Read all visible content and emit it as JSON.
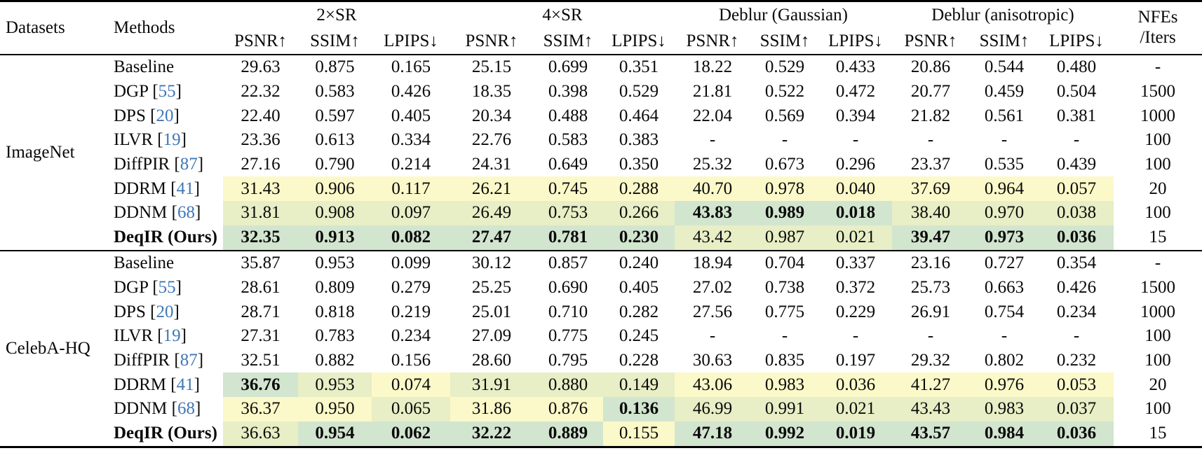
{
  "table": {
    "header": {
      "datasets": "Datasets",
      "methods": "Methods",
      "groups": [
        {
          "label": "2×SR"
        },
        {
          "label": "4×SR"
        },
        {
          "label": "Deblur (Gaussian)"
        },
        {
          "label": "Deblur (anisotropic)"
        }
      ],
      "metrics": [
        "PSNR↑",
        "SSIM↑",
        "LPIPS↓"
      ],
      "nfes_line1": "NFEs",
      "nfes_line2": "/Iters"
    },
    "highlight_colors": {
      "best": "#d2e5cf",
      "second": "#e8eec5",
      "third": "#fbf9c9"
    },
    "citation_color": "#4077b6",
    "sections": [
      {
        "dataset": "ImageNet",
        "rows": [
          {
            "method": "Baseline",
            "cite": null,
            "bold_method": false,
            "nfes": "-",
            "cells": [
              {
                "v": "29.63"
              },
              {
                "v": "0.875"
              },
              {
                "v": "0.165"
              },
              {
                "v": "25.15"
              },
              {
                "v": "0.699"
              },
              {
                "v": "0.351"
              },
              {
                "v": "18.22"
              },
              {
                "v": "0.529"
              },
              {
                "v": "0.433"
              },
              {
                "v": "20.86"
              },
              {
                "v": "0.544"
              },
              {
                "v": "0.480"
              }
            ]
          },
          {
            "method": "DGP",
            "cite": "55",
            "bold_method": false,
            "nfes": "1500",
            "cells": [
              {
                "v": "22.32"
              },
              {
                "v": "0.583"
              },
              {
                "v": "0.426"
              },
              {
                "v": "18.35"
              },
              {
                "v": "0.398"
              },
              {
                "v": "0.529"
              },
              {
                "v": "21.81"
              },
              {
                "v": "0.522"
              },
              {
                "v": "0.472"
              },
              {
                "v": "20.77"
              },
              {
                "v": "0.459"
              },
              {
                "v": "0.504"
              }
            ]
          },
          {
            "method": "DPS",
            "cite": "20",
            "bold_method": false,
            "nfes": "1000",
            "cells": [
              {
                "v": "22.40"
              },
              {
                "v": "0.597"
              },
              {
                "v": "0.405"
              },
              {
                "v": "20.34"
              },
              {
                "v": "0.488"
              },
              {
                "v": "0.464"
              },
              {
                "v": "22.04"
              },
              {
                "v": "0.569"
              },
              {
                "v": "0.394"
              },
              {
                "v": "21.82"
              },
              {
                "v": "0.561"
              },
              {
                "v": "0.381"
              }
            ]
          },
          {
            "method": "ILVR",
            "cite": "19",
            "bold_method": false,
            "nfes": "100",
            "cells": [
              {
                "v": "23.36"
              },
              {
                "v": "0.613"
              },
              {
                "v": "0.334"
              },
              {
                "v": "22.76"
              },
              {
                "v": "0.583"
              },
              {
                "v": "0.383"
              },
              {
                "v": "-"
              },
              {
                "v": "-"
              },
              {
                "v": "-"
              },
              {
                "v": "-"
              },
              {
                "v": "-"
              },
              {
                "v": "-"
              }
            ]
          },
          {
            "method": "DiffPIR",
            "cite": "87",
            "bold_method": false,
            "nfes": "100",
            "cells": [
              {
                "v": "27.16"
              },
              {
                "v": "0.790"
              },
              {
                "v": "0.214"
              },
              {
                "v": "24.31"
              },
              {
                "v": "0.649"
              },
              {
                "v": "0.350"
              },
              {
                "v": "25.32"
              },
              {
                "v": "0.673"
              },
              {
                "v": "0.296"
              },
              {
                "v": "23.37"
              },
              {
                "v": "0.535"
              },
              {
                "v": "0.439"
              }
            ]
          },
          {
            "method": "DDRM",
            "cite": "41",
            "bold_method": false,
            "nfes": "20",
            "cells": [
              {
                "v": "31.43",
                "h": "third"
              },
              {
                "v": "0.906",
                "h": "third"
              },
              {
                "v": "0.117",
                "h": "third"
              },
              {
                "v": "26.21",
                "h": "third"
              },
              {
                "v": "0.745",
                "h": "third"
              },
              {
                "v": "0.288",
                "h": "third"
              },
              {
                "v": "40.70",
                "h": "third"
              },
              {
                "v": "0.978",
                "h": "third"
              },
              {
                "v": "0.040",
                "h": "third"
              },
              {
                "v": "37.69",
                "h": "third"
              },
              {
                "v": "0.964",
                "h": "third"
              },
              {
                "v": "0.057",
                "h": "third"
              }
            ]
          },
          {
            "method": "DDNM",
            "cite": "68",
            "bold_method": false,
            "nfes": "100",
            "cells": [
              {
                "v": "31.81",
                "h": "second"
              },
              {
                "v": "0.908",
                "h": "second"
              },
              {
                "v": "0.097",
                "h": "second"
              },
              {
                "v": "26.49",
                "h": "second"
              },
              {
                "v": "0.753",
                "h": "second"
              },
              {
                "v": "0.266",
                "h": "second"
              },
              {
                "v": "43.83",
                "h": "best",
                "b": true
              },
              {
                "v": "0.989",
                "h": "best",
                "b": true
              },
              {
                "v": "0.018",
                "h": "best",
                "b": true
              },
              {
                "v": "38.40",
                "h": "second"
              },
              {
                "v": "0.970",
                "h": "second"
              },
              {
                "v": "0.038",
                "h": "second"
              }
            ]
          },
          {
            "method": "DeqIR (Ours)",
            "cite": null,
            "bold_method": true,
            "nfes": "15",
            "cells": [
              {
                "v": "32.35",
                "h": "best",
                "b": true
              },
              {
                "v": "0.913",
                "h": "best",
                "b": true
              },
              {
                "v": "0.082",
                "h": "best",
                "b": true
              },
              {
                "v": "27.47",
                "h": "best",
                "b": true
              },
              {
                "v": "0.781",
                "h": "best",
                "b": true
              },
              {
                "v": "0.230",
                "h": "best",
                "b": true
              },
              {
                "v": "43.42",
                "h": "second"
              },
              {
                "v": "0.987",
                "h": "second"
              },
              {
                "v": "0.021",
                "h": "second"
              },
              {
                "v": "39.47",
                "h": "best",
                "b": true
              },
              {
                "v": "0.973",
                "h": "best",
                "b": true
              },
              {
                "v": "0.036",
                "h": "best",
                "b": true
              }
            ]
          }
        ]
      },
      {
        "dataset": "CelebA-HQ",
        "rows": [
          {
            "method": "Baseline",
            "cite": null,
            "bold_method": false,
            "nfes": "-",
            "cells": [
              {
                "v": "35.87"
              },
              {
                "v": "0.953"
              },
              {
                "v": "0.099"
              },
              {
                "v": "30.12"
              },
              {
                "v": "0.857"
              },
              {
                "v": "0.240"
              },
              {
                "v": "18.94"
              },
              {
                "v": "0.704"
              },
              {
                "v": "0.337"
              },
              {
                "v": "23.16"
              },
              {
                "v": "0.727"
              },
              {
                "v": "0.354"
              }
            ]
          },
          {
            "method": "DGP",
            "cite": "55",
            "bold_method": false,
            "nfes": "1500",
            "cells": [
              {
                "v": "28.61"
              },
              {
                "v": "0.809"
              },
              {
                "v": "0.279"
              },
              {
                "v": "25.25"
              },
              {
                "v": "0.690"
              },
              {
                "v": "0.405"
              },
              {
                "v": "27.02"
              },
              {
                "v": "0.738"
              },
              {
                "v": "0.372"
              },
              {
                "v": "25.73"
              },
              {
                "v": "0.663"
              },
              {
                "v": "0.426"
              }
            ]
          },
          {
            "method": "DPS",
            "cite": "20",
            "bold_method": false,
            "nfes": "1000",
            "cells": [
              {
                "v": "28.71"
              },
              {
                "v": "0.818"
              },
              {
                "v": "0.219"
              },
              {
                "v": "25.01"
              },
              {
                "v": "0.710"
              },
              {
                "v": "0.282"
              },
              {
                "v": "27.56"
              },
              {
                "v": "0.775"
              },
              {
                "v": "0.229"
              },
              {
                "v": "26.91"
              },
              {
                "v": "0.754"
              },
              {
                "v": "0.234"
              }
            ]
          },
          {
            "method": "ILVR",
            "cite": "19",
            "bold_method": false,
            "nfes": "100",
            "cells": [
              {
                "v": "27.31"
              },
              {
                "v": "0.783"
              },
              {
                "v": "0.234"
              },
              {
                "v": "27.09"
              },
              {
                "v": "0.775"
              },
              {
                "v": "0.245"
              },
              {
                "v": "-"
              },
              {
                "v": "-"
              },
              {
                "v": "-"
              },
              {
                "v": "-"
              },
              {
                "v": "-"
              },
              {
                "v": "-"
              }
            ]
          },
          {
            "method": "DiffPIR",
            "cite": "87",
            "bold_method": false,
            "nfes": "100",
            "cells": [
              {
                "v": "32.51"
              },
              {
                "v": "0.882"
              },
              {
                "v": "0.156"
              },
              {
                "v": "28.60"
              },
              {
                "v": "0.795"
              },
              {
                "v": "0.228"
              },
              {
                "v": "30.63"
              },
              {
                "v": "0.835"
              },
              {
                "v": "0.197"
              },
              {
                "v": "29.32"
              },
              {
                "v": "0.802"
              },
              {
                "v": "0.232"
              }
            ]
          },
          {
            "method": "DDRM",
            "cite": "41",
            "bold_method": false,
            "nfes": "20",
            "cells": [
              {
                "v": "36.76",
                "h": "best",
                "b": true
              },
              {
                "v": "0.953",
                "h": "second"
              },
              {
                "v": "0.074",
                "h": "third"
              },
              {
                "v": "31.91",
                "h": "second"
              },
              {
                "v": "0.880",
                "h": "second"
              },
              {
                "v": "0.149",
                "h": "second"
              },
              {
                "v": "43.06",
                "h": "third"
              },
              {
                "v": "0.983",
                "h": "third"
              },
              {
                "v": "0.036",
                "h": "third"
              },
              {
                "v": "41.27",
                "h": "third"
              },
              {
                "v": "0.976",
                "h": "third"
              },
              {
                "v": "0.053",
                "h": "third"
              }
            ]
          },
          {
            "method": "DDNM",
            "cite": "68",
            "bold_method": false,
            "nfes": "100",
            "cells": [
              {
                "v": "36.37",
                "h": "third"
              },
              {
                "v": "0.950",
                "h": "third"
              },
              {
                "v": "0.065",
                "h": "second"
              },
              {
                "v": "31.86",
                "h": "third"
              },
              {
                "v": "0.876",
                "h": "third"
              },
              {
                "v": "0.136",
                "h": "best",
                "b": true
              },
              {
                "v": "46.99",
                "h": "second"
              },
              {
                "v": "0.991",
                "h": "second"
              },
              {
                "v": "0.021",
                "h": "second"
              },
              {
                "v": "43.43",
                "h": "second"
              },
              {
                "v": "0.983",
                "h": "second"
              },
              {
                "v": "0.037",
                "h": "second"
              }
            ]
          },
          {
            "method": "DeqIR (Ours)",
            "cite": null,
            "bold_method": true,
            "nfes": "15",
            "cells": [
              {
                "v": "36.63",
                "h": "second"
              },
              {
                "v": "0.954",
                "h": "best",
                "b": true
              },
              {
                "v": "0.062",
                "h": "best",
                "b": true
              },
              {
                "v": "32.22",
                "h": "best",
                "b": true
              },
              {
                "v": "0.889",
                "h": "best",
                "b": true
              },
              {
                "v": "0.155",
                "h": "third"
              },
              {
                "v": "47.18",
                "h": "best",
                "b": true
              },
              {
                "v": "0.992",
                "h": "best",
                "b": true
              },
              {
                "v": "0.019",
                "h": "best",
                "b": true
              },
              {
                "v": "43.57",
                "h": "best",
                "b": true
              },
              {
                "v": "0.984",
                "h": "best",
                "b": true
              },
              {
                "v": "0.036",
                "h": "best",
                "b": true
              }
            ]
          }
        ]
      }
    ]
  }
}
